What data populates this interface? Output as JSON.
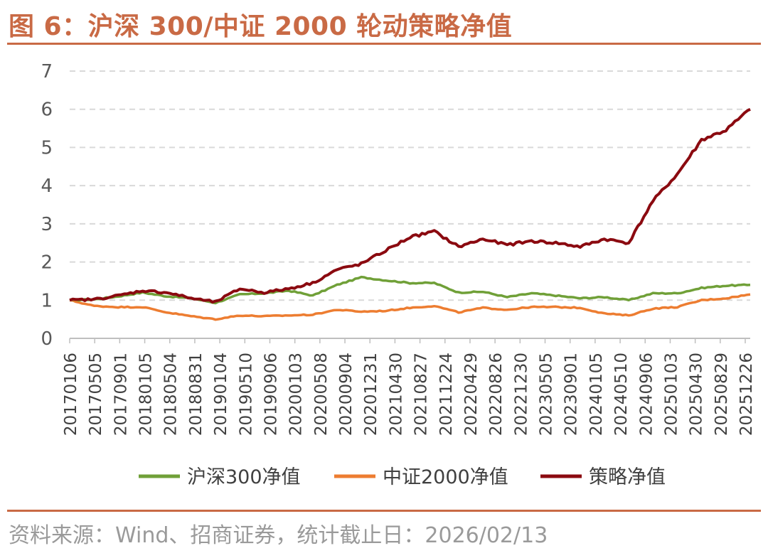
{
  "title": "图 6：沪深 300/中证 2000 轮动策略净值",
  "source": "资料来源：Wind、招商证券，统计截止日：2026/02/13",
  "chart_data": {
    "type": "line",
    "ylim": [
      0,
      7
    ],
    "yticks": [
      "0",
      "1",
      "2",
      "3",
      "4",
      "5",
      "6",
      "7"
    ],
    "grid": true,
    "legend_position": "bottom",
    "xticks": [
      "20170106",
      "20170505",
      "20170901",
      "20180105",
      "20180504",
      "20180831",
      "20190104",
      "20190510",
      "20190906",
      "20200103",
      "20200508",
      "20200904",
      "20201231",
      "20210430",
      "20210827",
      "20211224",
      "20220429",
      "20220826",
      "20221230",
      "20230505",
      "20230901",
      "20240105",
      "20240510",
      "20240906",
      "20250103",
      "20250430",
      "20250829",
      "20251226"
    ],
    "x_dates": [
      "2017-01-06",
      "2017-05-05",
      "2017-09-01",
      "2018-01-05",
      "2018-05-04",
      "2018-08-31",
      "2019-01-04",
      "2019-05-10",
      "2019-09-06",
      "2020-01-03",
      "2020-05-08",
      "2020-09-04",
      "2020-12-31",
      "2021-04-30",
      "2021-08-27",
      "2021-12-24",
      "2022-04-29",
      "2022-08-26",
      "2022-12-30",
      "2023-05-05",
      "2023-09-01",
      "2024-01-05",
      "2024-05-10",
      "2024-09-06",
      "2025-01-03",
      "2025-04-30",
      "2025-08-29",
      "2025-12-26",
      "2026-02-13"
    ],
    "series": [
      {
        "name": "沪深300净值",
        "color": "#70a038",
        "values": [
          1.0,
          1.02,
          1.1,
          1.2,
          1.1,
          1.05,
          0.93,
          1.15,
          1.18,
          1.25,
          1.12,
          1.4,
          1.6,
          1.52,
          1.45,
          1.45,
          1.2,
          1.22,
          1.08,
          1.18,
          1.12,
          1.05,
          1.08,
          1.0,
          1.18,
          1.18,
          1.32,
          1.38,
          1.4
        ]
      },
      {
        "name": "中证2000净值",
        "color": "#ed7d31",
        "values": [
          1.0,
          0.85,
          0.82,
          0.82,
          0.68,
          0.58,
          0.5,
          0.6,
          0.58,
          0.6,
          0.62,
          0.75,
          0.7,
          0.72,
          0.8,
          0.85,
          0.68,
          0.8,
          0.75,
          0.82,
          0.82,
          0.8,
          0.65,
          0.6,
          0.78,
          0.82,
          1.0,
          1.05,
          1.15
        ]
      },
      {
        "name": "策略净值",
        "color": "#8b0a10",
        "values": [
          1.0,
          1.02,
          1.12,
          1.25,
          1.2,
          1.05,
          0.95,
          1.3,
          1.2,
          1.3,
          1.45,
          1.8,
          1.95,
          2.3,
          2.65,
          2.8,
          2.4,
          2.6,
          2.45,
          2.55,
          2.5,
          2.4,
          2.6,
          2.5,
          3.6,
          4.3,
          5.2,
          5.45,
          6.0
        ]
      }
    ]
  }
}
